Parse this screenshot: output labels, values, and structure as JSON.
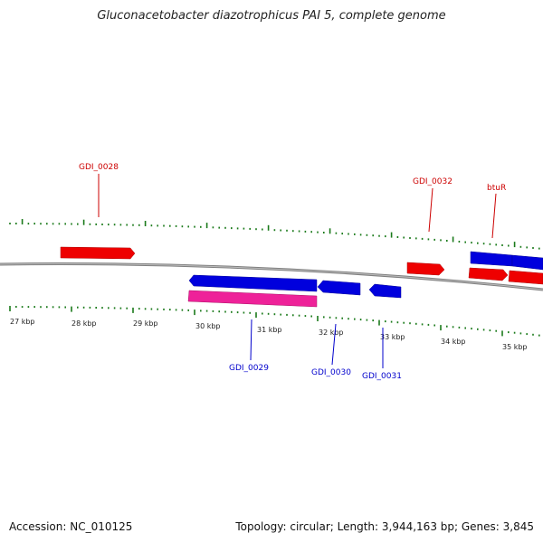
{
  "title": "Gluconacetobacter diazotrophicus PAI 5, complete genome",
  "footer": {
    "accession": "Accession: NC_010125",
    "summary": "Topology: circular; Length: 3,944,163 bp; Genes: 3,845"
  },
  "colors": {
    "forward_gene": "#ee0000",
    "reverse_gene": "#0000dd",
    "rna_gene": "#ee2299",
    "ticks": "#1a7a1a",
    "backbone": "#808080",
    "forward_label": "#cc0000",
    "reverse_label": "#0000cc"
  },
  "scale_labels": [
    "27 kbp",
    "28 kbp",
    "29 kbp",
    "30 kbp",
    "31 kbp",
    "32 kbp",
    "33 kbp",
    "34 kbp",
    "35 kbp"
  ],
  "gene_labels": {
    "top": [
      "GDI_0028",
      "GDI_0032",
      "btuR"
    ],
    "bottom": [
      "GDI_0029",
      "GDI_0030",
      "GDI_0031"
    ]
  }
}
